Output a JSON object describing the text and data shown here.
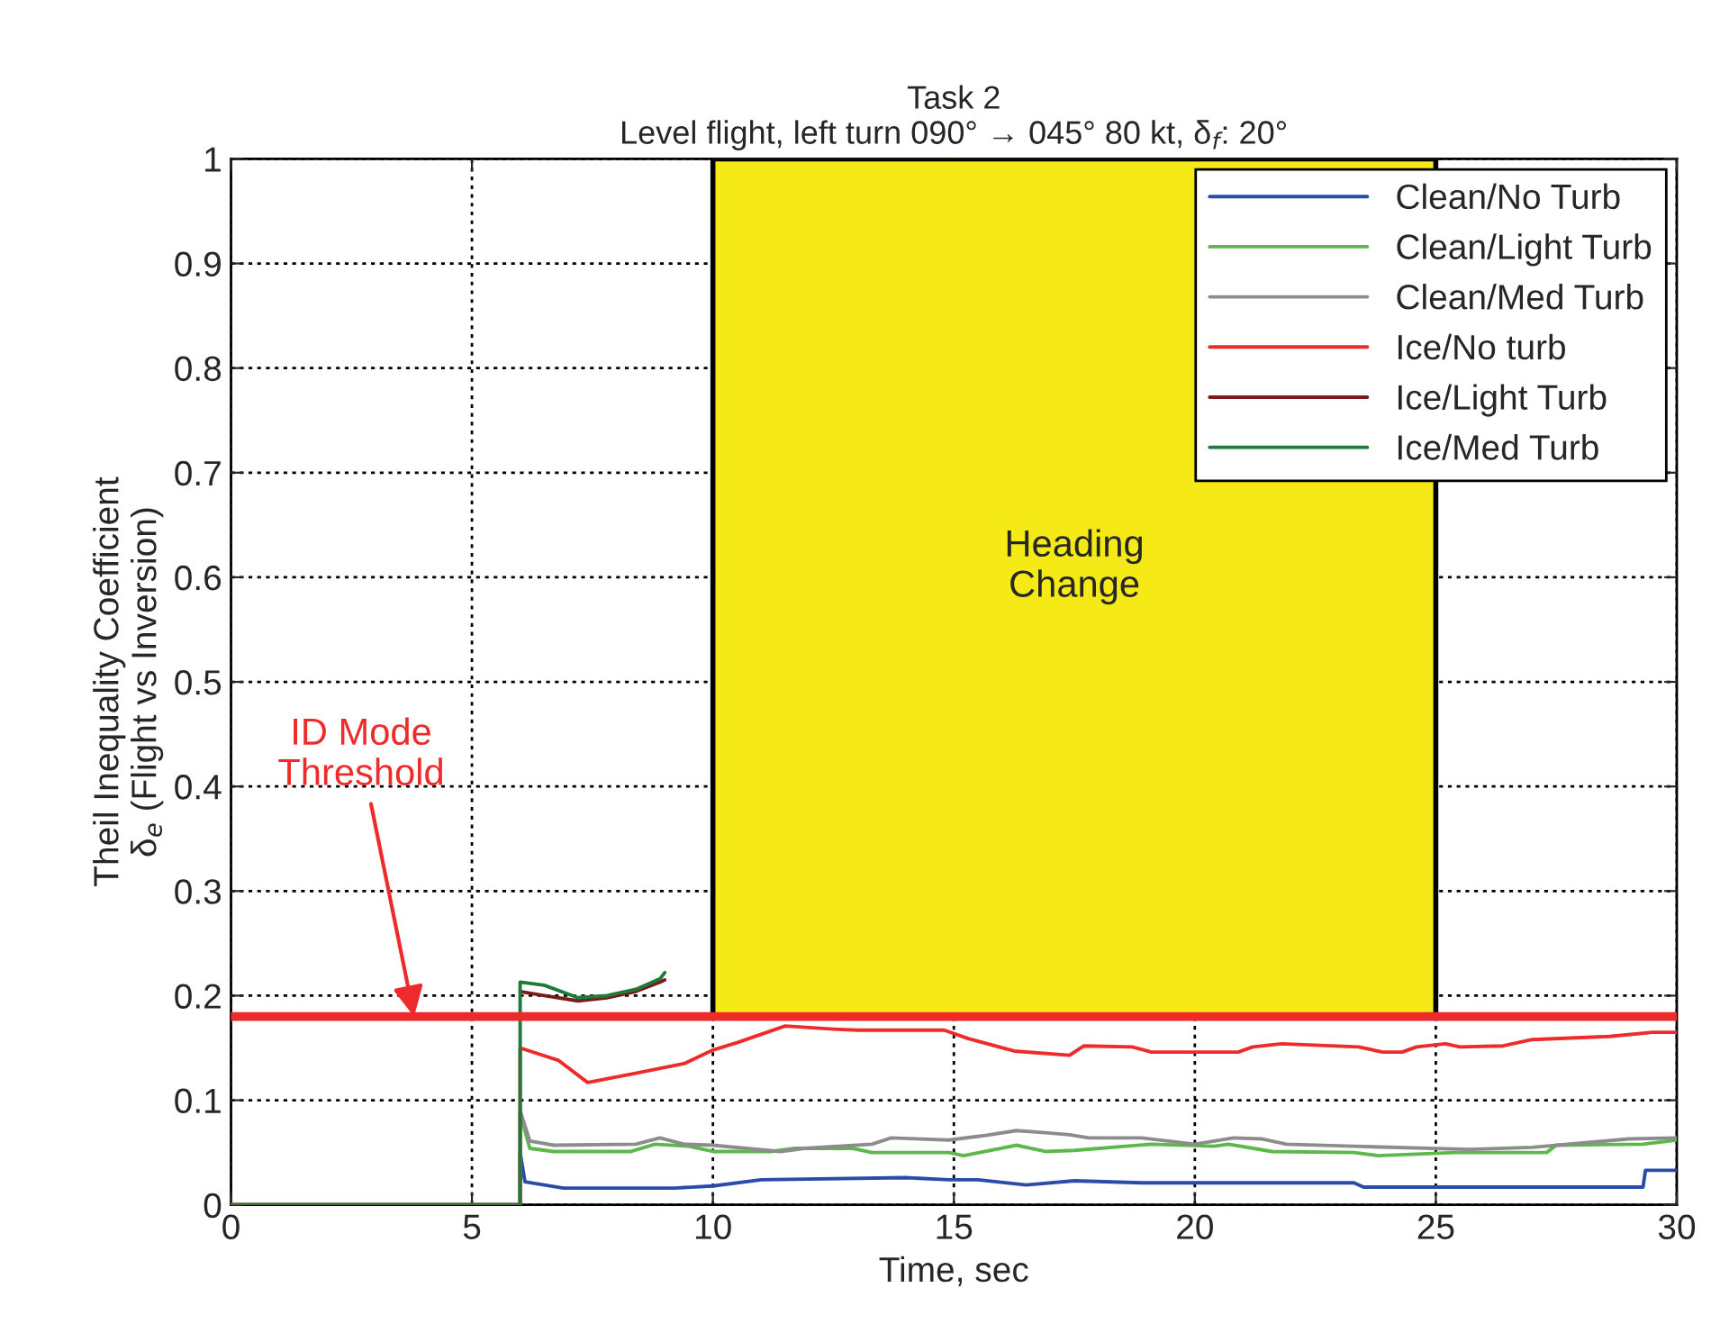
{
  "chart_data": {
    "type": "line",
    "title": "Task 2",
    "subtitle": "Level flight, left turn 090° → 045° 80 kt, δ$_{f}$: 20°",
    "xlabel": "Time, sec",
    "ylabel": "Theil Inequality Coefficient\nδ$_{e}$ (Flight vs Inversion)",
    "xlim": [
      0,
      30
    ],
    "ylim": [
      0,
      1
    ],
    "xticks": [
      0,
      5,
      10,
      15,
      20,
      25,
      30
    ],
    "yticks": [
      0,
      0.1,
      0.2,
      0.3,
      0.4,
      0.5,
      0.6,
      0.7,
      0.8,
      0.9,
      1
    ],
    "grid": true,
    "legend": "top right",
    "series": [
      {
        "name": "Clean/No Turb",
        "color": "#2b4ba8",
        "x": [
          0,
          6,
          6,
          6.1,
          6.9,
          9.2,
          10,
          11,
          14,
          14.9,
          15.5,
          16.5,
          17.5,
          18.9,
          23.3,
          23.5,
          29.3,
          29.35,
          30
        ],
        "values": [
          0,
          0,
          0.05,
          0.022,
          0.016,
          0.016,
          0.018,
          0.024,
          0.026,
          0.024,
          0.024,
          0.019,
          0.023,
          0.021,
          0.021,
          0.017,
          0.017,
          0.033,
          0.033
        ]
      },
      {
        "name": "Clean/Light Turb",
        "color": "#5cb84a",
        "x": [
          0,
          6,
          6,
          6.2,
          6.7,
          8.3,
          8.8,
          9.5,
          10,
          11.2,
          11.7,
          12.9,
          13.3,
          14.9,
          15.2,
          16.3,
          16.9,
          17.5,
          19.1,
          20.4,
          20.7,
          21.6,
          23.3,
          23.8,
          25.4,
          25.7,
          27.3,
          27.5,
          29.3,
          30
        ],
        "values": [
          0,
          0,
          0.088,
          0.054,
          0.051,
          0.051,
          0.058,
          0.056,
          0.051,
          0.051,
          0.054,
          0.054,
          0.05,
          0.05,
          0.047,
          0.057,
          0.051,
          0.052,
          0.058,
          0.056,
          0.058,
          0.051,
          0.05,
          0.047,
          0.05,
          0.05,
          0.05,
          0.057,
          0.058,
          0.062
        ]
      },
      {
        "name": "Clean/Med Turb",
        "color": "#8c8c8c",
        "x": [
          0,
          6,
          6,
          6.2,
          6.7,
          8.4,
          8.9,
          9.4,
          10,
          11.4,
          11.9,
          13.3,
          13.7,
          14.9,
          15.6,
          16.3,
          16.9,
          17.4,
          17.8,
          18.9,
          20,
          20.8,
          21.4,
          21.9,
          23.3,
          25.7,
          27,
          29,
          30
        ],
        "values": [
          0,
          0,
          0.09,
          0.061,
          0.057,
          0.058,
          0.064,
          0.058,
          0.057,
          0.051,
          0.054,
          0.058,
          0.064,
          0.062,
          0.066,
          0.071,
          0.069,
          0.067,
          0.064,
          0.064,
          0.058,
          0.064,
          0.063,
          0.058,
          0.056,
          0.053,
          0.055,
          0.063,
          0.064
        ]
      },
      {
        "name": "Ice/No turb",
        "color": "#ee2a2a",
        "x": [
          0,
          6,
          6,
          6.8,
          7.4,
          8.3,
          9.4,
          10,
          10.5,
          11.5,
          12.5,
          13,
          14.8,
          15.3,
          16.25,
          17.4,
          17.7,
          18.7,
          19.1,
          20.9,
          21.2,
          21.8,
          23.4,
          23.9,
          24.3,
          24.6,
          25.2,
          25.5,
          26.4,
          27,
          28.6,
          29.5,
          30
        ],
        "values": [
          0,
          0,
          0.15,
          0.138,
          0.117,
          0.125,
          0.135,
          0.148,
          0.155,
          0.171,
          0.168,
          0.167,
          0.167,
          0.159,
          0.147,
          0.143,
          0.152,
          0.151,
          0.146,
          0.146,
          0.151,
          0.154,
          0.151,
          0.146,
          0.146,
          0.151,
          0.154,
          0.151,
          0.152,
          0.158,
          0.161,
          0.165,
          0.165
        ]
      },
      {
        "name": "Ice/Light Turb",
        "color": "#7a1a1a",
        "x": [
          6,
          6.5,
          7.2,
          7.8,
          8.4,
          8.9,
          9
        ],
        "values": [
          0.204,
          0.2,
          0.195,
          0.198,
          0.204,
          0.213,
          0.215
        ]
      },
      {
        "name": "Ice/Med Turb",
        "color": "#1f7a3a",
        "x": [
          0,
          6,
          6,
          6.5,
          7.2,
          7.8,
          8.4,
          8.9,
          9
        ],
        "values": [
          0,
          0,
          0.213,
          0.21,
          0.198,
          0.2,
          0.206,
          0.216,
          0.222
        ]
      }
    ],
    "ref_lines": [
      {
        "axis": "y",
        "value": 0.18,
        "color": "#ee2a2a"
      }
    ],
    "bands": [
      {
        "axis": "x",
        "from": 10,
        "to": 25,
        "label": "Heading\nChange",
        "color": "#f5e916"
      }
    ],
    "annotations": [
      {
        "text": "ID Mode\nThreshold",
        "x": 3.8,
        "y": 0.18
      }
    ]
  }
}
